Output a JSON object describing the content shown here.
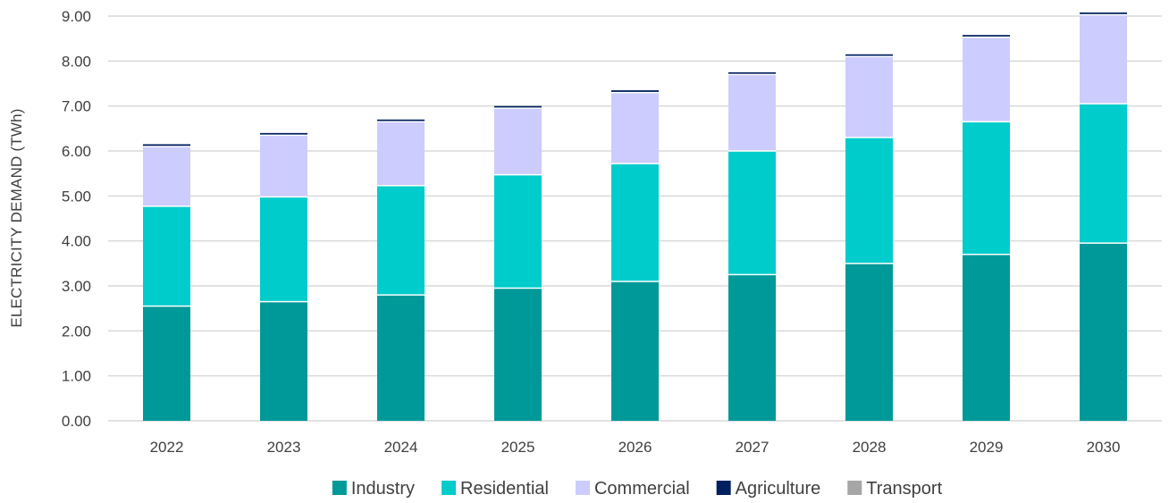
{
  "chart_data": {
    "type": "bar",
    "stacked": true,
    "ylabel": "ELECTRICITY  DEMAND (TWh)",
    "ylim": [
      0,
      9
    ],
    "yticks": [
      "0.00",
      "1.00",
      "2.00",
      "3.00",
      "4.00",
      "5.00",
      "6.00",
      "7.00",
      "8.00",
      "9.00"
    ],
    "categories": [
      "2022",
      "2023",
      "2024",
      "2025",
      "2026",
      "2027",
      "2028",
      "2029",
      "2030"
    ],
    "grid": true,
    "legend_position": "bottom",
    "series": [
      {
        "name": "Industry",
        "color": "#009999",
        "values": [
          2.55,
          2.65,
          2.8,
          2.95,
          3.1,
          3.25,
          3.5,
          3.7,
          3.95
        ]
      },
      {
        "name": "Residential",
        "color": "#00CCCC",
        "values": [
          2.22,
          2.33,
          2.43,
          2.52,
          2.62,
          2.75,
          2.8,
          2.95,
          3.1
        ]
      },
      {
        "name": "Commercial",
        "color": "#CCCCFF",
        "values": [
          1.33,
          1.37,
          1.42,
          1.48,
          1.58,
          1.7,
          1.8,
          1.88,
          1.98
        ]
      },
      {
        "name": "Agriculture",
        "color": "#002060",
        "values": [
          0.05,
          0.05,
          0.05,
          0.05,
          0.05,
          0.05,
          0.05,
          0.05,
          0.05
        ]
      },
      {
        "name": "Transport",
        "color": "#A6A6A6",
        "values": [
          0.0,
          0.0,
          0.0,
          0.0,
          0.0,
          0.0,
          0.0,
          0.0,
          0.0
        ]
      }
    ]
  }
}
